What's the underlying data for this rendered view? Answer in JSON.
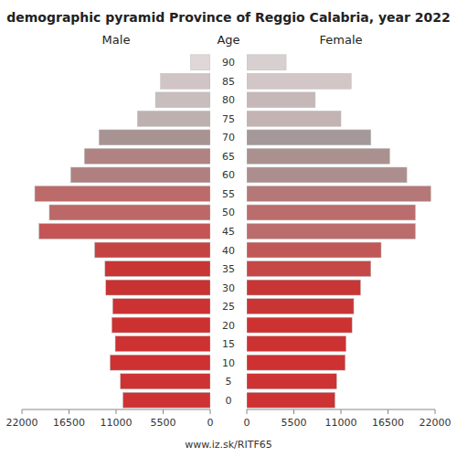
{
  "chart_data": {
    "type": "bar",
    "orientation": "horizontal",
    "title": "demographic pyramid Province of Reggio Calabria, year 2022",
    "ylabel": "Age",
    "annotations": [
      "www.iz.sk/RITF65"
    ],
    "categories": [
      0,
      5,
      10,
      15,
      20,
      25,
      30,
      35,
      40,
      45,
      50,
      55,
      60,
      65,
      70,
      75,
      80,
      85,
      90
    ],
    "series": [
      {
        "name": "Male",
        "values": [
          10200,
          10500,
          11700,
          11100,
          11500,
          11400,
          12200,
          12300,
          13500,
          20000,
          18800,
          20500,
          16300,
          14700,
          13000,
          8500,
          6400,
          5800,
          2300
        ],
        "colors": [
          "#cd3333",
          "#cd3333",
          "#cd3131",
          "#cd3131",
          "#cc3131",
          "#cc3232",
          "#c83232",
          "#c93434",
          "#c44444",
          "#c55555",
          "#bc6868",
          "#bd6a6a",
          "#b08080",
          "#b08282",
          "#a89393",
          "#bfb0b0",
          "#c8bebe",
          "#d0c4c4",
          "#e0d8d8"
        ]
      },
      {
        "name": "Female",
        "values": [
          10300,
          10500,
          11500,
          11600,
          12300,
          12500,
          13300,
          14500,
          15700,
          19700,
          19700,
          21500,
          18700,
          16700,
          14500,
          11000,
          8000,
          12200,
          4600
        ],
        "colors": [
          "#cd3333",
          "#cd3333",
          "#cd3131",
          "#cc3232",
          "#cc3232",
          "#c93535",
          "#c83535",
          "#c54747",
          "#c05858",
          "#bb6c6c",
          "#bb6c6c",
          "#b57878",
          "#ac8e8e",
          "#ab9090",
          "#a59898",
          "#c3b3b3",
          "#c6b8b8",
          "#d3c6c6",
          "#d8d0d0"
        ]
      }
    ],
    "xlim": [
      0,
      22000
    ],
    "xticks": [
      0,
      5500,
      11000,
      16500,
      22000
    ],
    "grid": false
  }
}
